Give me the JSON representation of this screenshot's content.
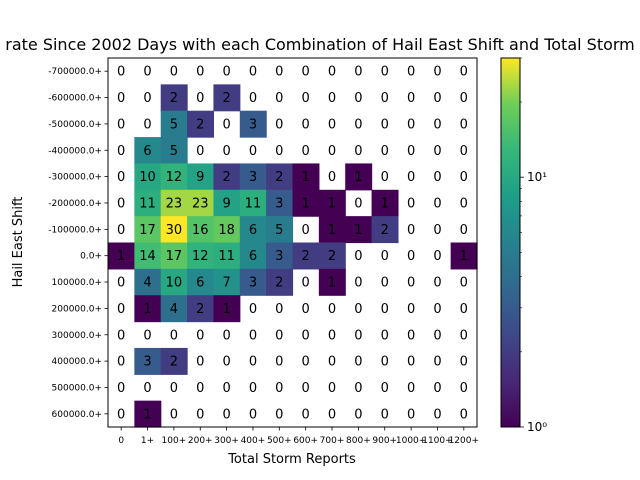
{
  "chart_data": {
    "type": "heatmap",
    "title": "rate Since 2002 Days with each Combination of Hail East Shift and Total Storm",
    "xlabel": "Total Storm Reports",
    "ylabel": "Hail East Shift",
    "x_categories": [
      "0",
      "1+",
      "100+",
      "200+",
      "300+",
      "400+",
      "500+",
      "600+",
      "700+",
      "800+",
      "900+",
      "1000+",
      "1100+",
      "1200+"
    ],
    "y_categories": [
      "-700000.0+",
      "-600000.0+",
      "-500000.0+",
      "-400000.0+",
      "-300000.0+",
      "-200000.0+",
      "-100000.0+",
      "0.0+",
      "100000.0+",
      "200000.0+",
      "300000.0+",
      "400000.0+",
      "500000.0+",
      "600000.0+"
    ],
    "values": [
      [
        0,
        0,
        0,
        0,
        0,
        0,
        0,
        0,
        0,
        0,
        0,
        0,
        0,
        0
      ],
      [
        0,
        0,
        2,
        0,
        2,
        0,
        0,
        0,
        0,
        0,
        0,
        0,
        0,
        0
      ],
      [
        0,
        0,
        5,
        2,
        0,
        3,
        0,
        0,
        0,
        0,
        0,
        0,
        0,
        0
      ],
      [
        0,
        6,
        5,
        0,
        0,
        0,
        0,
        0,
        0,
        0,
        0,
        0,
        0,
        0
      ],
      [
        0,
        10,
        12,
        9,
        2,
        3,
        2,
        1,
        0,
        1,
        0,
        0,
        0,
        0
      ],
      [
        0,
        11,
        23,
        23,
        9,
        11,
        3,
        1,
        1,
        0,
        1,
        0,
        0,
        0
      ],
      [
        0,
        17,
        30,
        16,
        18,
        6,
        5,
        0,
        1,
        1,
        2,
        0,
        0,
        0
      ],
      [
        1,
        14,
        17,
        12,
        11,
        6,
        3,
        2,
        2,
        0,
        0,
        0,
        0,
        1
      ],
      [
        0,
        4,
        10,
        6,
        7,
        3,
        2,
        0,
        1,
        0,
        0,
        0,
        0,
        0
      ],
      [
        0,
        1,
        4,
        2,
        1,
        0,
        0,
        0,
        0,
        0,
        0,
        0,
        0,
        0
      ],
      [
        0,
        0,
        0,
        0,
        0,
        0,
        0,
        0,
        0,
        0,
        0,
        0,
        0,
        0
      ],
      [
        0,
        3,
        2,
        0,
        0,
        0,
        0,
        0,
        0,
        0,
        0,
        0,
        0,
        0
      ],
      [
        0,
        0,
        0,
        0,
        0,
        0,
        0,
        0,
        0,
        0,
        0,
        0,
        0,
        0
      ],
      [
        0,
        1,
        0,
        0,
        0,
        0,
        0,
        0,
        0,
        0,
        0,
        0,
        0,
        0
      ]
    ],
    "color_scale": "log",
    "colormap": "viridis",
    "colorbar_range": [
      1,
      30
    ],
    "colorbar_ticks": [
      {
        "value": 1,
        "label": "10⁰"
      },
      {
        "value": 10,
        "label": "10¹"
      }
    ],
    "zero_cells": "blank",
    "grid": false
  }
}
